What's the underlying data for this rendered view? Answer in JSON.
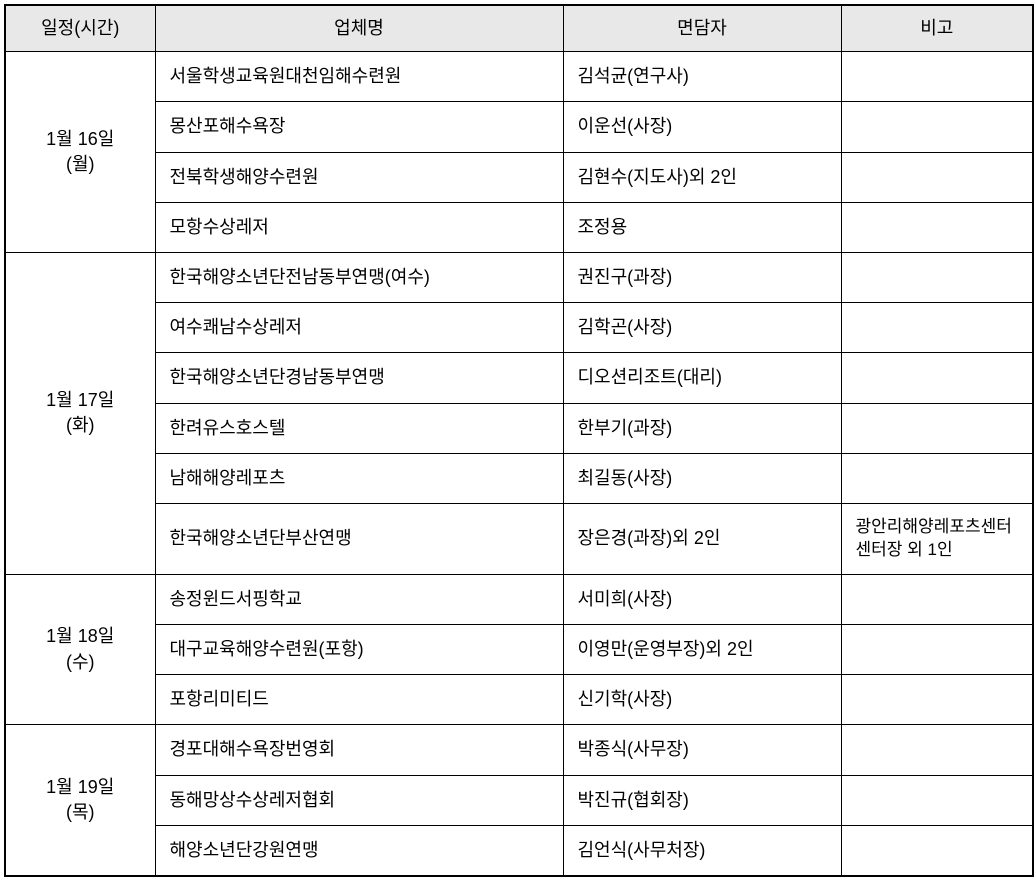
{
  "headers": {
    "schedule": "일정(시간)",
    "company": "업체명",
    "interviewer": "면담자",
    "note": "비고"
  },
  "groups": [
    {
      "schedule_line1": "1월 16일",
      "schedule_line2": "(월)",
      "rows": [
        {
          "company": "서울학생교육원대천임해수련원",
          "interviewer": "김석균(연구사)",
          "note": ""
        },
        {
          "company": "몽산포해수욕장",
          "interviewer": "이운선(사장)",
          "note": ""
        },
        {
          "company": "전북학생해양수련원",
          "interviewer": "김현수(지도사)외 2인",
          "note": ""
        },
        {
          "company": "모항수상레저",
          "interviewer": "조정용",
          "note": ""
        }
      ]
    },
    {
      "schedule_line1": "1월 17일",
      "schedule_line2": "(화)",
      "rows": [
        {
          "company": "한국해양소년단전남동부연맹(여수)",
          "interviewer": "권진구(과장)",
          "note": ""
        },
        {
          "company": "여수쾌남수상레저",
          "interviewer": "김학곤(사장)",
          "note": ""
        },
        {
          "company": "한국해양소년단경남동부연맹",
          "interviewer": "디오션리조트(대리)",
          "note": ""
        },
        {
          "company": "한려유스호스텔",
          "interviewer": "한부기(과장)",
          "note": ""
        },
        {
          "company": "남해해양레포츠",
          "interviewer": "최길동(사장)",
          "note": ""
        },
        {
          "company": "한국해양소년단부산연맹",
          "interviewer": "장은경(과장)외 2인",
          "note": "광안리해양레포츠센터 센터장 외 1인"
        }
      ]
    },
    {
      "schedule_line1": "1월 18일",
      "schedule_line2": "(수)",
      "rows": [
        {
          "company": "송정윈드서핑학교",
          "interviewer": "서미희(사장)",
          "note": ""
        },
        {
          "company": "대구교육해양수련원(포항)",
          "interviewer": "이영만(운영부장)외 2인",
          "note": ""
        },
        {
          "company": "포항리미티드",
          "interviewer": "신기학(사장)",
          "note": ""
        }
      ]
    },
    {
      "schedule_line1": "1월 19일",
      "schedule_line2": "(목)",
      "rows": [
        {
          "company": "경포대해수욕장번영회",
          "interviewer": "박종식(사무장)",
          "note": ""
        },
        {
          "company": "동해망상수상레저협회",
          "interviewer": "박진규(협회장)",
          "note": ""
        },
        {
          "company": "해양소년단강원연맹",
          "interviewer": "김언식(사무처장)",
          "note": ""
        }
      ]
    }
  ]
}
